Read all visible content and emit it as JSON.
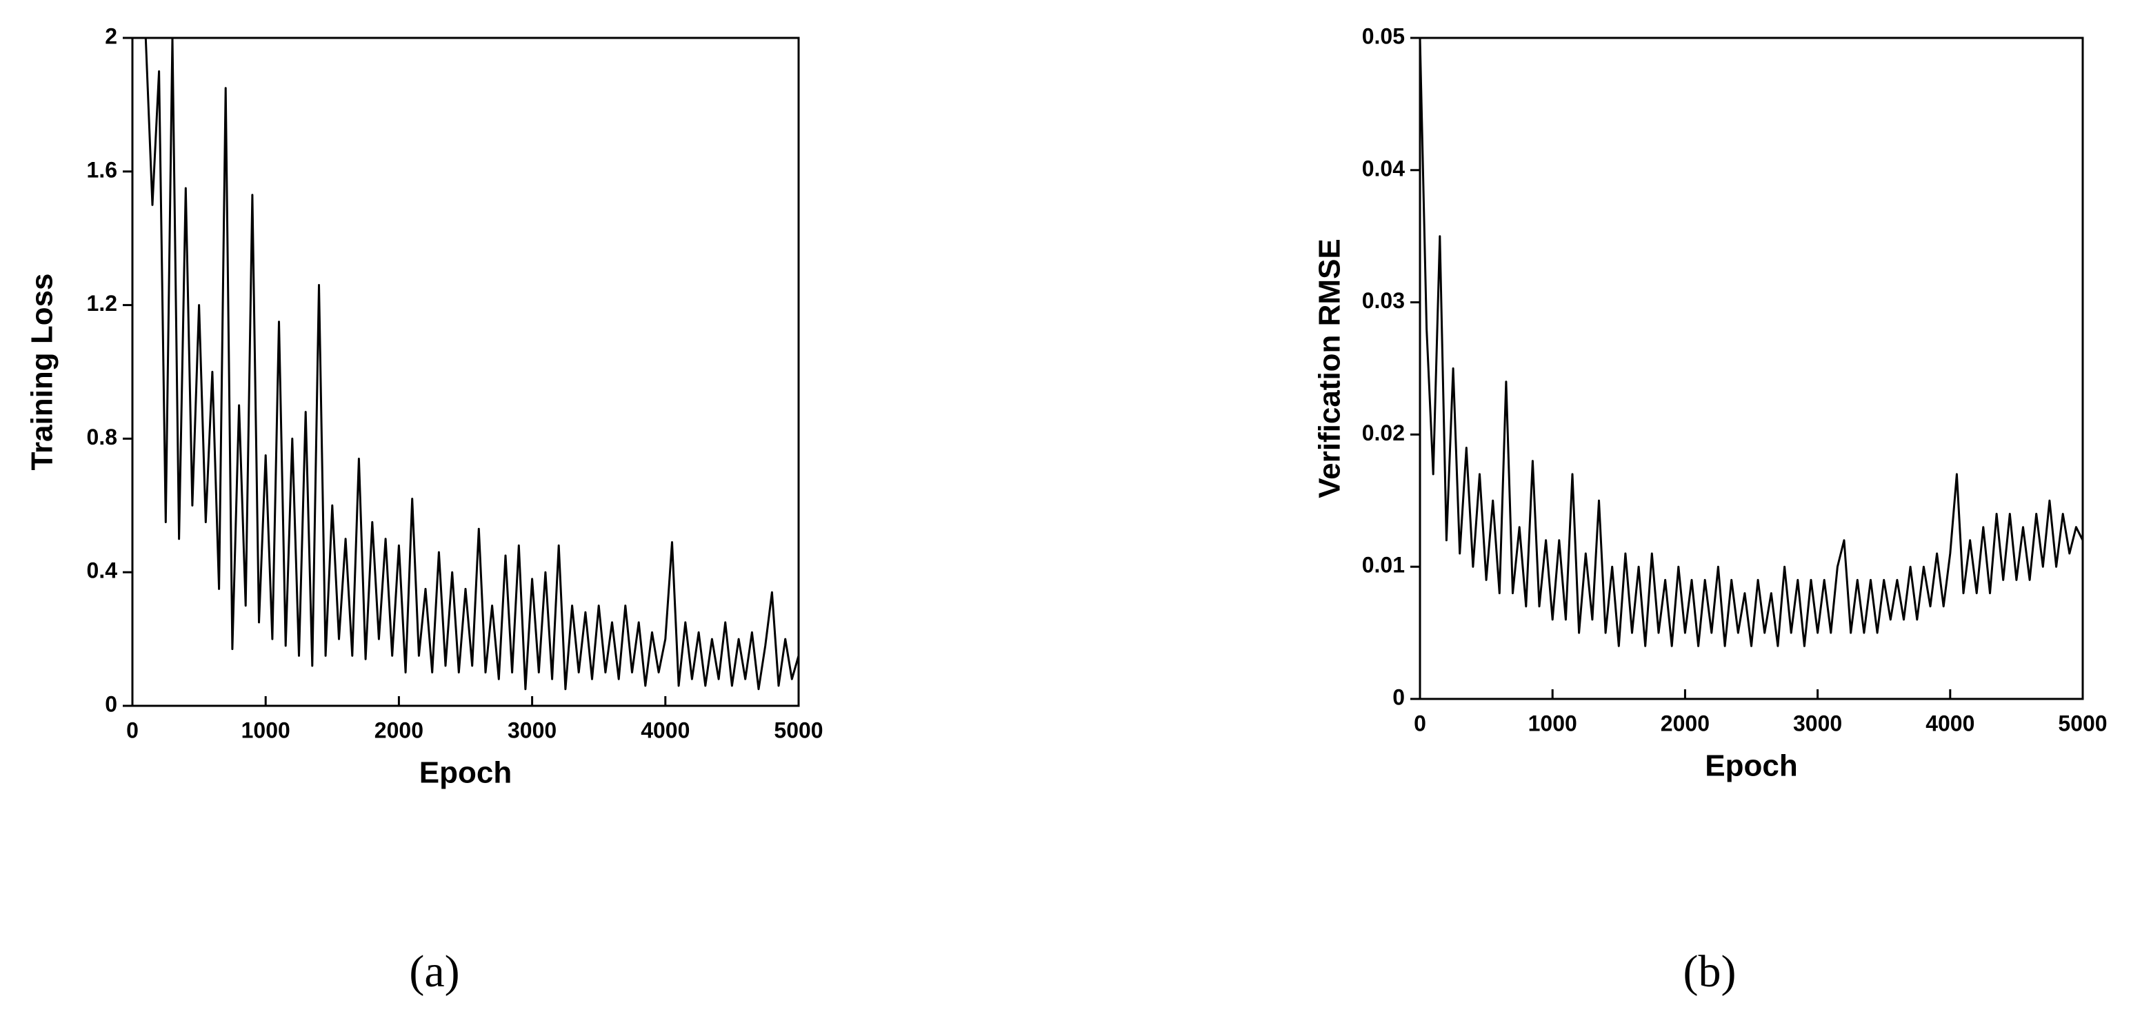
{
  "chart_data": [
    {
      "type": "line",
      "label": "(a)",
      "xlabel": "Epoch",
      "ylabel": "Training Loss",
      "xlim": [
        0,
        5000
      ],
      "xticks": [
        0,
        1000,
        2000,
        3000,
        4000,
        5000
      ],
      "ylim": [
        0,
        2
      ],
      "yticks": [
        0,
        0.4,
        0.8,
        1.2,
        1.6,
        2
      ],
      "series": [
        {
          "name": "Training Loss",
          "color": "#000000",
          "x": [
            100,
            150,
            200,
            250,
            300,
            350,
            400,
            450,
            500,
            550,
            600,
            650,
            700,
            750,
            800,
            850,
            900,
            950,
            1000,
            1050,
            1100,
            1150,
            1200,
            1250,
            1300,
            1350,
            1400,
            1450,
            1500,
            1550,
            1600,
            1650,
            1700,
            1750,
            1800,
            1850,
            1900,
            1950,
            2000,
            2050,
            2100,
            2150,
            2200,
            2250,
            2300,
            2350,
            2400,
            2450,
            2500,
            2550,
            2600,
            2650,
            2700,
            2750,
            2800,
            2850,
            2900,
            2950,
            3000,
            3050,
            3100,
            3150,
            3200,
            3250,
            3300,
            3350,
            3400,
            3450,
            3500,
            3550,
            3600,
            3650,
            3700,
            3750,
            3800,
            3850,
            3900,
            3950,
            4000,
            4050,
            4100,
            4150,
            4200,
            4250,
            4300,
            4350,
            4400,
            4450,
            4500,
            4550,
            4600,
            4650,
            4700,
            4750,
            4800,
            4850,
            4900,
            4950,
            5000
          ],
          "values": [
            2.0,
            1.5,
            1.9,
            0.55,
            2.0,
            0.5,
            1.55,
            0.6,
            1.2,
            0.55,
            1.0,
            0.35,
            1.85,
            0.17,
            0.9,
            0.3,
            1.53,
            0.25,
            0.75,
            0.2,
            1.15,
            0.18,
            0.8,
            0.15,
            0.88,
            0.12,
            1.26,
            0.15,
            0.6,
            0.2,
            0.5,
            0.15,
            0.74,
            0.14,
            0.55,
            0.2,
            0.5,
            0.15,
            0.48,
            0.1,
            0.62,
            0.15,
            0.35,
            0.1,
            0.46,
            0.12,
            0.4,
            0.1,
            0.35,
            0.12,
            0.53,
            0.1,
            0.3,
            0.08,
            0.45,
            0.1,
            0.48,
            0.05,
            0.38,
            0.1,
            0.4,
            0.08,
            0.48,
            0.05,
            0.3,
            0.1,
            0.28,
            0.08,
            0.3,
            0.1,
            0.25,
            0.08,
            0.3,
            0.1,
            0.25,
            0.06,
            0.22,
            0.1,
            0.2,
            0.49,
            0.06,
            0.25,
            0.08,
            0.22,
            0.06,
            0.2,
            0.08,
            0.25,
            0.06,
            0.2,
            0.08,
            0.22,
            0.05,
            0.18,
            0.34,
            0.06,
            0.2,
            0.08,
            0.15
          ]
        }
      ]
    },
    {
      "type": "line",
      "label": "(b)",
      "xlabel": "Epoch",
      "ylabel": "Verification RMSE",
      "xlim": [
        0,
        5000
      ],
      "xticks": [
        0,
        1000,
        2000,
        3000,
        4000,
        5000
      ],
      "ylim": [
        0,
        0.05
      ],
      "yticks": [
        0,
        0.01,
        0.02,
        0.03,
        0.04,
        0.05
      ],
      "series": [
        {
          "name": "Verification RMSE",
          "color": "#000000",
          "x": [
            0,
            50,
            100,
            150,
            200,
            250,
            300,
            350,
            400,
            450,
            500,
            550,
            600,
            650,
            700,
            750,
            800,
            850,
            900,
            950,
            1000,
            1050,
            1100,
            1150,
            1200,
            1250,
            1300,
            1350,
            1400,
            1450,
            1500,
            1550,
            1600,
            1650,
            1700,
            1750,
            1800,
            1850,
            1900,
            1950,
            2000,
            2050,
            2100,
            2150,
            2200,
            2250,
            2300,
            2350,
            2400,
            2450,
            2500,
            2550,
            2600,
            2650,
            2700,
            2750,
            2800,
            2850,
            2900,
            2950,
            3000,
            3050,
            3100,
            3150,
            3200,
            3250,
            3300,
            3350,
            3400,
            3450,
            3500,
            3550,
            3600,
            3650,
            3700,
            3750,
            3800,
            3850,
            3900,
            3950,
            4000,
            4050,
            4100,
            4150,
            4200,
            4250,
            4300,
            4350,
            4400,
            4450,
            4500,
            4550,
            4600,
            4650,
            4700,
            4750,
            4800,
            4850,
            4900,
            4950,
            5000
          ],
          "values": [
            0.05,
            0.028,
            0.017,
            0.035,
            0.012,
            0.025,
            0.011,
            0.019,
            0.01,
            0.017,
            0.009,
            0.015,
            0.008,
            0.024,
            0.008,
            0.013,
            0.007,
            0.018,
            0.007,
            0.012,
            0.006,
            0.012,
            0.006,
            0.017,
            0.005,
            0.011,
            0.006,
            0.015,
            0.005,
            0.01,
            0.004,
            0.011,
            0.005,
            0.01,
            0.004,
            0.011,
            0.005,
            0.009,
            0.004,
            0.01,
            0.005,
            0.009,
            0.004,
            0.009,
            0.005,
            0.01,
            0.004,
            0.009,
            0.005,
            0.008,
            0.004,
            0.009,
            0.005,
            0.008,
            0.004,
            0.01,
            0.005,
            0.009,
            0.004,
            0.009,
            0.005,
            0.009,
            0.005,
            0.01,
            0.012,
            0.005,
            0.009,
            0.005,
            0.009,
            0.005,
            0.009,
            0.006,
            0.009,
            0.006,
            0.01,
            0.006,
            0.01,
            0.007,
            0.011,
            0.007,
            0.011,
            0.017,
            0.008,
            0.012,
            0.008,
            0.013,
            0.008,
            0.014,
            0.009,
            0.014,
            0.009,
            0.013,
            0.009,
            0.014,
            0.01,
            0.015,
            0.01,
            0.014,
            0.011,
            0.013,
            0.012
          ]
        }
      ]
    }
  ]
}
